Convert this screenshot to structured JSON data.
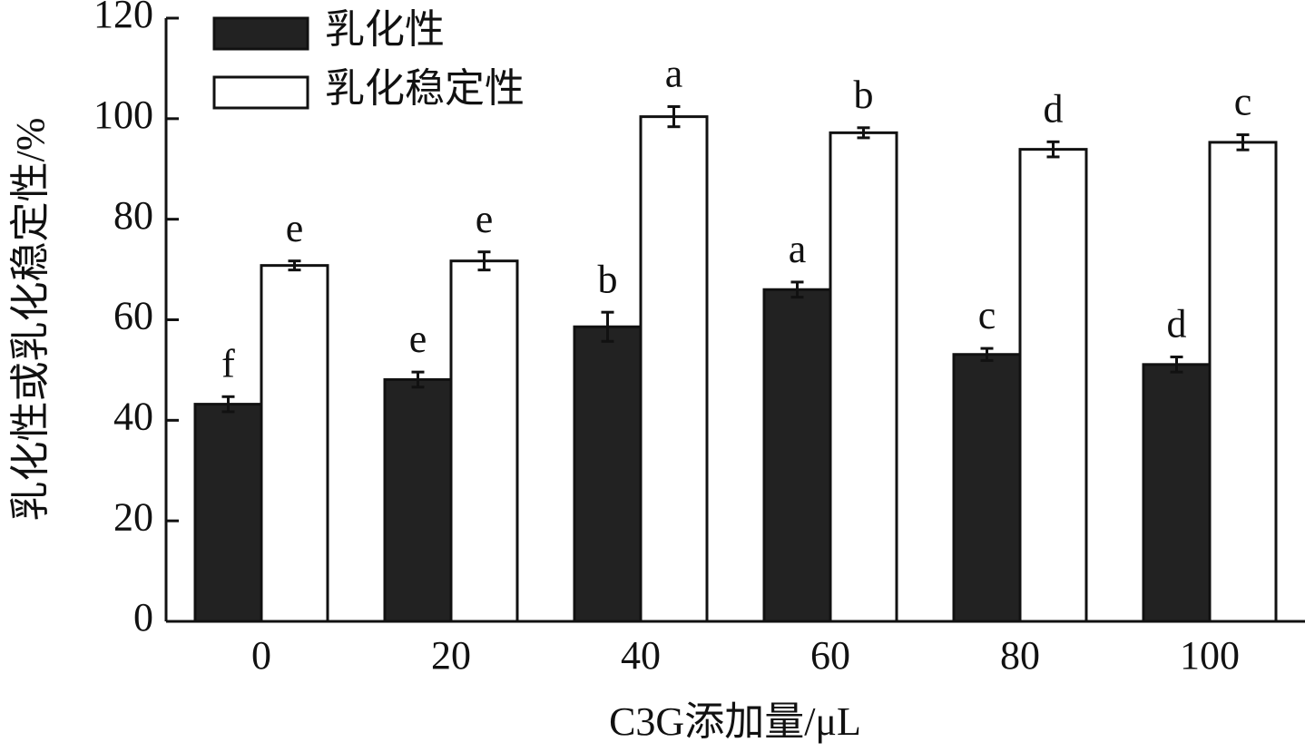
{
  "chart_data": {
    "type": "bar",
    "xlabel": "C3G添加量/μL",
    "ylabel": "乳化性或乳化稳定性/%",
    "categories": [
      "0",
      "20",
      "40",
      "60",
      "80",
      "100"
    ],
    "series": [
      {
        "name": "乳化性",
        "color": "#222222",
        "values": [
          43.2,
          48.1,
          58.6,
          66.0,
          53.1,
          51.1
        ],
        "errors": [
          1.5,
          1.5,
          2.9,
          1.5,
          1.2,
          1.5
        ],
        "letters": [
          "f",
          "e",
          "b",
          "a",
          "c",
          "d"
        ]
      },
      {
        "name": "乳化稳定性",
        "color": "#ffffff",
        "values": [
          70.8,
          71.7,
          100.4,
          97.2,
          93.9,
          95.3
        ],
        "errors": [
          0.9,
          1.8,
          2.0,
          1.0,
          1.5,
          1.5
        ],
        "letters": [
          "e",
          "e",
          "a",
          "b",
          "d",
          "c"
        ]
      }
    ],
    "ylim": [
      0,
      120
    ],
    "yticks": [
      0,
      20,
      40,
      60,
      80,
      100,
      120
    ],
    "grid": false,
    "legend": "upper left"
  }
}
